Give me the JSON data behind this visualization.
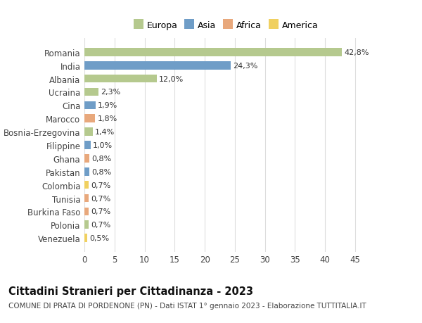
{
  "countries": [
    "Romania",
    "India",
    "Albania",
    "Ucraina",
    "Cina",
    "Marocco",
    "Bosnia-Erzegovina",
    "Filippine",
    "Ghana",
    "Pakistan",
    "Colombia",
    "Tunisia",
    "Burkina Faso",
    "Polonia",
    "Venezuela"
  ],
  "values": [
    42.8,
    24.3,
    12.0,
    2.3,
    1.9,
    1.8,
    1.4,
    1.0,
    0.8,
    0.8,
    0.7,
    0.7,
    0.7,
    0.7,
    0.5
  ],
  "labels": [
    "42,8%",
    "24,3%",
    "12,0%",
    "2,3%",
    "1,9%",
    "1,8%",
    "1,4%",
    "1,0%",
    "0,8%",
    "0,8%",
    "0,7%",
    "0,7%",
    "0,7%",
    "0,7%",
    "0,5%"
  ],
  "continents": [
    "Europa",
    "Asia",
    "Europa",
    "Europa",
    "Asia",
    "Africa",
    "Europa",
    "Asia",
    "Africa",
    "Asia",
    "America",
    "Africa",
    "Africa",
    "Europa",
    "America"
  ],
  "continent_colors": {
    "Europa": "#b5c98e",
    "Asia": "#6f9dc7",
    "Africa": "#e8a87c",
    "America": "#f0d060"
  },
  "legend_order": [
    "Europa",
    "Asia",
    "Africa",
    "America"
  ],
  "title": "Cittadini Stranieri per Cittadinanza - 2023",
  "subtitle": "COMUNE DI PRATA DI PORDENONE (PN) - Dati ISTAT 1° gennaio 2023 - Elaborazione TUTTITALIA.IT",
  "xlim": [
    0,
    47
  ],
  "xticks": [
    0,
    5,
    10,
    15,
    20,
    25,
    30,
    35,
    40,
    45
  ],
  "background_color": "#ffffff",
  "grid_color": "#dddddd",
  "bar_height": 0.62,
  "title_fontsize": 10.5,
  "subtitle_fontsize": 7.5,
  "tick_fontsize": 8.5,
  "label_fontsize": 8.0,
  "legend_fontsize": 9.0
}
